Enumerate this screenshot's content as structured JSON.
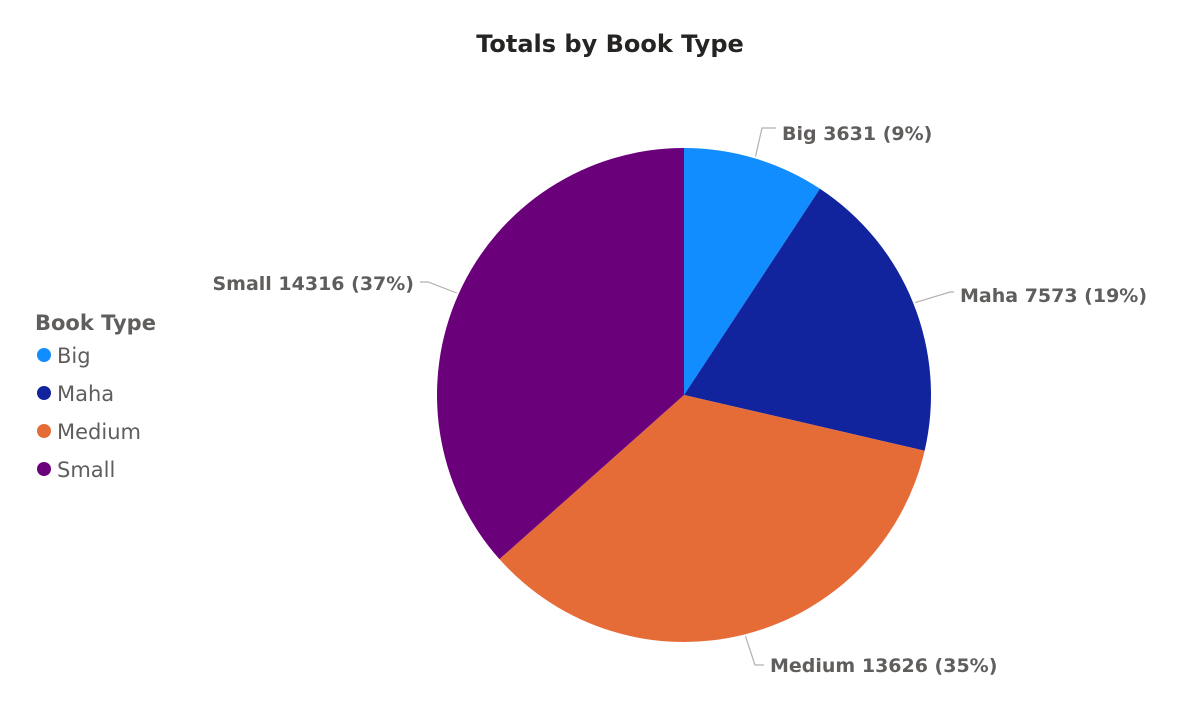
{
  "chart_data": {
    "type": "pie",
    "title": "Totals by Book Type",
    "legend": {
      "title": "Book Type",
      "position": "left"
    },
    "slices": [
      {
        "label": "Big",
        "value": 3631,
        "percent_label": "9%",
        "display": "Big 3631 (9%)",
        "color": "#118DFF"
      },
      {
        "label": "Maha",
        "value": 7573,
        "percent_label": "19%",
        "display": "Maha 7573 (19%)",
        "color": "#12239E"
      },
      {
        "label": "Medium",
        "value": 13626,
        "percent_label": "35%",
        "display": "Medium 13626 (35%)",
        "color": "#E66C37"
      },
      {
        "label": "Small",
        "value": 14316,
        "percent_label": "37%",
        "display": "Small 14316 (37%)",
        "color": "#6B007B"
      }
    ]
  }
}
